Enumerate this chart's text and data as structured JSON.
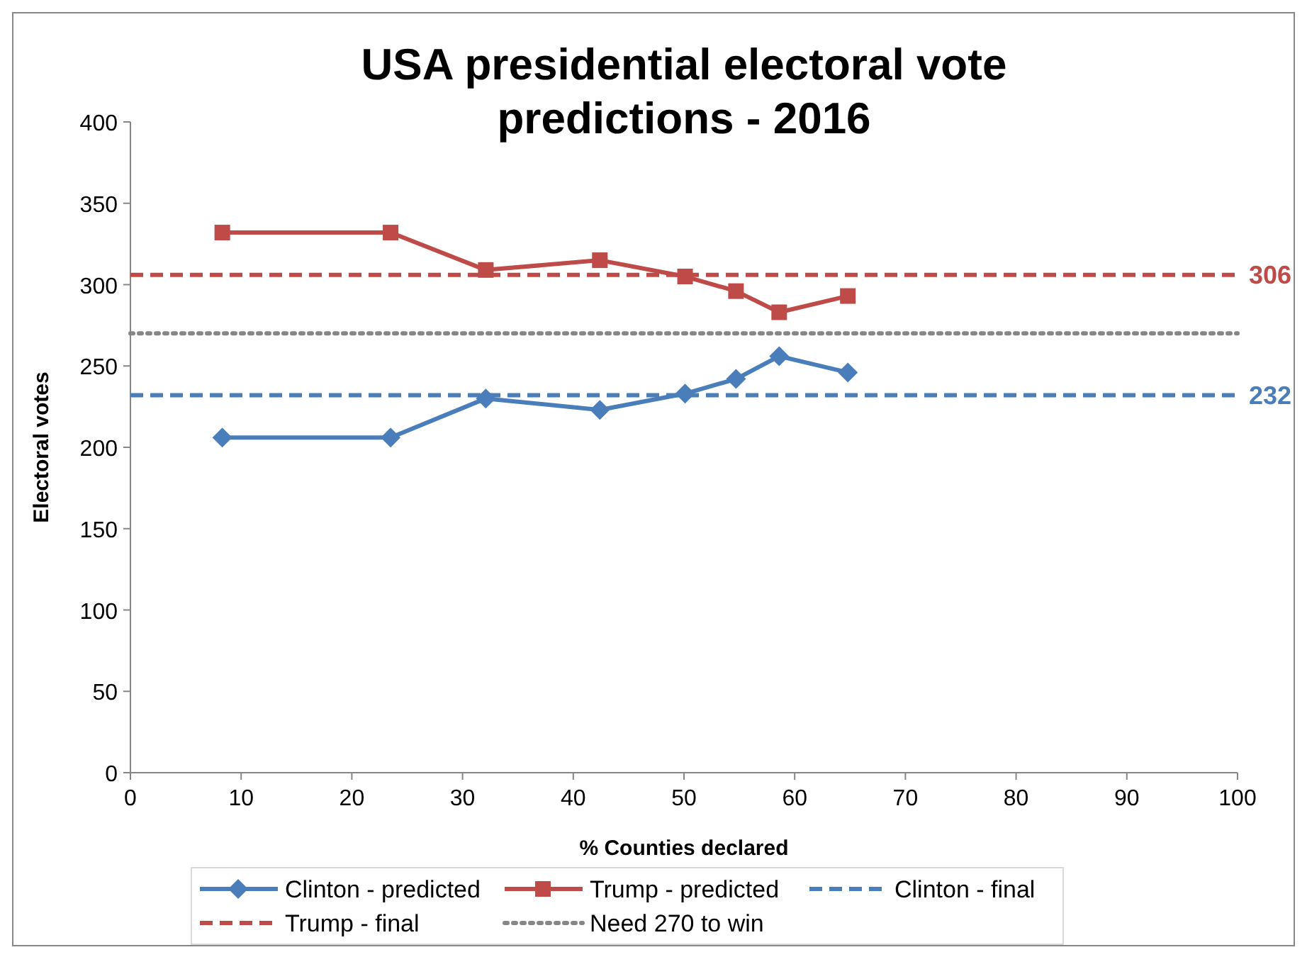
{
  "chart_data": {
    "type": "line",
    "title": "USA presidential electoral vote predictions - 2016",
    "xlabel": "% Counties declared",
    "ylabel": "Electoral votes",
    "xlim": [
      0,
      100
    ],
    "xticks": [
      0,
      10,
      20,
      30,
      40,
      50,
      60,
      70,
      80,
      90,
      100
    ],
    "ylim": [
      0,
      400
    ],
    "yticks": [
      0,
      50,
      100,
      150,
      200,
      250,
      300,
      350,
      400
    ],
    "grid": false,
    "legend": "bottom",
    "series": [
      {
        "name": "Clinton - predicted",
        "color": "#4a7ebb",
        "marker": "diamond",
        "line_style": "solid",
        "x": [
          8.3,
          23.5,
          32.1,
          42.4,
          50.1,
          54.7,
          58.6,
          64.8
        ],
        "values": [
          206,
          206,
          230,
          223,
          233,
          242,
          256,
          246
        ]
      },
      {
        "name": "Trump - predicted",
        "color": "#be4b48",
        "marker": "square",
        "line_style": "solid",
        "x": [
          8.3,
          23.5,
          32.1,
          42.4,
          50.1,
          54.7,
          58.6,
          64.8
        ],
        "values": [
          332,
          332,
          309,
          315,
          305,
          296,
          283,
          293
        ]
      },
      {
        "name": "Clinton - final",
        "color": "#4a7ebb",
        "marker": "none",
        "line_style": "dashed",
        "x": [
          0,
          100
        ],
        "values": [
          232,
          232
        ],
        "value_labels": [
          null,
          "232"
        ]
      },
      {
        "name": "Trump - final",
        "color": "#be4b48",
        "marker": "none",
        "line_style": "dashed",
        "x": [
          0,
          100
        ],
        "values": [
          306,
          306
        ],
        "value_labels": [
          null,
          "306"
        ]
      },
      {
        "name": "Need 270 to win",
        "color": "#868686",
        "marker": "none",
        "line_style": "dotted",
        "x": [
          0,
          100
        ],
        "values": [
          270,
          270
        ]
      }
    ]
  }
}
